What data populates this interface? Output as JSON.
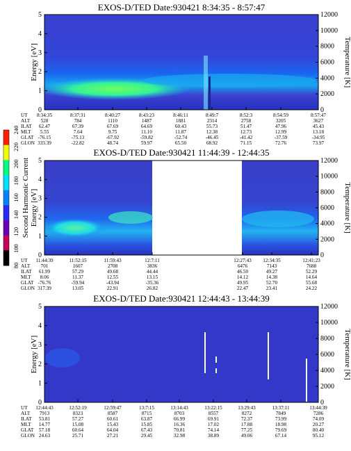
{
  "chart_data": [
    {
      "type": "heatmap",
      "title": "EXOS-D/TED  Date:930421  8:34:35 - 8:57:47",
      "ylabel": "Energy [eV]",
      "ylabel_right": "Temperature [K]",
      "ylim": [
        0,
        5
      ],
      "ylim_right": [
        0,
        12000
      ],
      "yticks": [
        "0",
        "1",
        "2",
        "3",
        "4",
        "5"
      ],
      "yticks_right": [
        "0",
        "2000",
        "4000",
        "6000",
        "8000",
        "10000",
        "12000"
      ],
      "table": {
        "row_labels": [
          "UT",
          "ALT",
          "ILAT",
          "MLT",
          "GLAT",
          "GLON"
        ],
        "columns": [
          [
            "8:34:35",
            "528",
            "62.47",
            "5.55",
            "-76.15",
            "333.39"
          ],
          [
            "8:37:31",
            "784",
            "67.39",
            "7.64",
            "-75.13",
            "-22.82"
          ],
          [
            "8:40:27",
            "1110",
            "67.69",
            "9.75",
            "-67.92",
            "48.74"
          ],
          [
            "8:43:23",
            "1487",
            "64.69",
            "11.10",
            "-59.82",
            "59.97"
          ],
          [
            "8:46:11",
            "1881",
            "60.43",
            "11.87",
            "-52.74",
            "65.50"
          ],
          [
            "8:49:7",
            "2314",
            "55.73",
            "12.38",
            "-46.45",
            "68.92"
          ],
          [
            "8:52:3",
            "2758",
            "51.47",
            "12.73",
            "-41.42",
            "71.15"
          ],
          [
            "8:54:59",
            "3205",
            "47.96",
            "12.99",
            "-37.59",
            "72.76"
          ],
          [
            "8:57:47",
            "3627",
            "45.43",
            "13.18",
            "-34.95",
            "73.97"
          ]
        ]
      }
    },
    {
      "type": "heatmap",
      "title": "EXOS-D/TED  Date:930421  11:44:39 - 12:44:35",
      "ylabel": "Energy [eV]",
      "ylabel_right": "Temperature [K]",
      "ylim": [
        0,
        5
      ],
      "ylim_right": [
        0,
        12000
      ],
      "yticks": [
        "0",
        "1",
        "2",
        "3",
        "4",
        "5"
      ],
      "yticks_right": [
        "0",
        "2000",
        "4000",
        "6000",
        "8000",
        "10000",
        "12000"
      ],
      "data_gap": "12:7:11 - 12:27:43",
      "table": {
        "row_labels": [
          "UT",
          "ALT",
          "ILAT",
          "MLT",
          "GLAT",
          "GLON"
        ],
        "columns": [
          [
            "11:44:39",
            "701",
            "61.99",
            "8.06",
            "-76.76",
            "317.39"
          ],
          [
            "11:52:15",
            "1607",
            "57.29",
            "11.37",
            "-59.94",
            "13.05"
          ],
          [
            "11:59:43",
            "2708",
            "49.68",
            "12.55",
            "-43.94",
            "22.91"
          ],
          [
            "12:7:11",
            "3836",
            "44.44",
            "13.15",
            "-35.36",
            "26.82"
          ],
          [
            "12:27:43",
            "6476",
            "46.50",
            "14.12",
            "49.95",
            "22.47"
          ],
          [
            "12:34:35",
            "7143",
            "49.27",
            "14.38",
            "52.70",
            "23.41"
          ],
          [
            "12:41:23",
            "7688",
            "52.29",
            "14.64",
            "55.68",
            "24.22"
          ]
        ]
      }
    },
    {
      "type": "heatmap",
      "title": "EXOS-D/TED  Date:930421  12:44:43 - 13:44:39",
      "ylabel": "Energy [eV]",
      "ylabel_right": "Temperature [K]",
      "ylim": [
        0,
        5
      ],
      "ylim_right": [
        0,
        12000
      ],
      "yticks": [
        "0",
        "1",
        "2",
        "3",
        "4",
        "5"
      ],
      "yticks_right": [
        "0",
        "2000",
        "4000",
        "6000",
        "8000",
        "10000",
        "12000"
      ],
      "table": {
        "row_labels": [
          "UT",
          "ALT",
          "ILAT",
          "MLT",
          "GLAT",
          "GLON"
        ],
        "columns": [
          [
            "12:44:43",
            "7913",
            "53.81",
            "14.77",
            "57.18",
            "24.63"
          ],
          [
            "12:52:19",
            "8323",
            "57.27",
            "15.08",
            "60.64",
            "25.71"
          ],
          [
            "12:59:47",
            "8587",
            "60.61",
            "15.43",
            "64.04",
            "27.21"
          ],
          [
            "13:7:15",
            "8715",
            "63.87",
            "15.85",
            "67.43",
            "29.45"
          ],
          [
            "13:14:43",
            "8703",
            "66.99",
            "16.36",
            "70.81",
            "32.98"
          ],
          [
            "13:22:15",
            "8557",
            "69.91",
            "17.02",
            "74.14",
            "38.89"
          ],
          [
            "13:29:43",
            "8272",
            "72.37",
            "17.88",
            "77.25",
            "49.06"
          ],
          [
            "13:37:11",
            "7849",
            "73.99",
            "18.98",
            "79.69",
            "67.14"
          ],
          [
            "13:44:39",
            "7286",
            "74.09",
            "20.27",
            "80.40",
            "95.12"
          ]
        ]
      }
    }
  ],
  "colorbar": {
    "label": "Second Harmonic Current",
    "ticks": [
      "80",
      "100",
      "120",
      "140",
      "160",
      "180",
      "200",
      "220",
      "240"
    ],
    "colors": [
      "#000000",
      "#c4005a",
      "#6a00b4",
      "#2a2aff",
      "#0084ff",
      "#00e0ff",
      "#00ff80",
      "#f0ff00",
      "#ff1e00"
    ]
  }
}
